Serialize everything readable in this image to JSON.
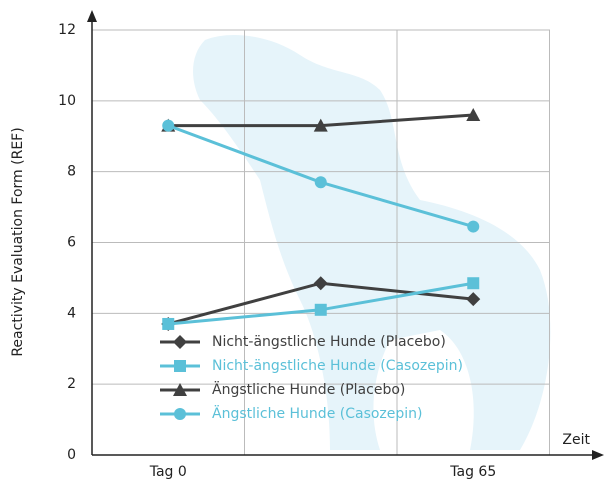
{
  "chart_data": {
    "type": "line",
    "ylabel": "Reactivity Evaluation Form (REF)",
    "xlabel": "Zeit",
    "categories": [
      "Tag 0",
      null,
      "Tag 65"
    ],
    "ylim": [
      0,
      12
    ],
    "yticks": [
      0,
      2,
      4,
      6,
      8,
      10,
      12
    ],
    "grid": true,
    "series": [
      {
        "name": "Nicht-ängstliche Hunde (Placebo)",
        "color": "#404040",
        "marker": "diamond",
        "values": [
          3.7,
          4.85,
          4.4
        ]
      },
      {
        "name": "Nicht-ängstliche Hunde (Casozepin)",
        "color": "#5bc0d8",
        "marker": "square",
        "values": [
          3.7,
          4.1,
          4.85
        ]
      },
      {
        "name": "Ängstliche Hunde (Placebo)",
        "color": "#404040",
        "marker": "triangle",
        "values": [
          9.3,
          9.3,
          9.6
        ]
      },
      {
        "name": "Ängstliche Hunde (Casozepin)",
        "color": "#5bc0d8",
        "marker": "circle",
        "values": [
          9.3,
          7.7,
          6.45
        ]
      }
    ]
  }
}
